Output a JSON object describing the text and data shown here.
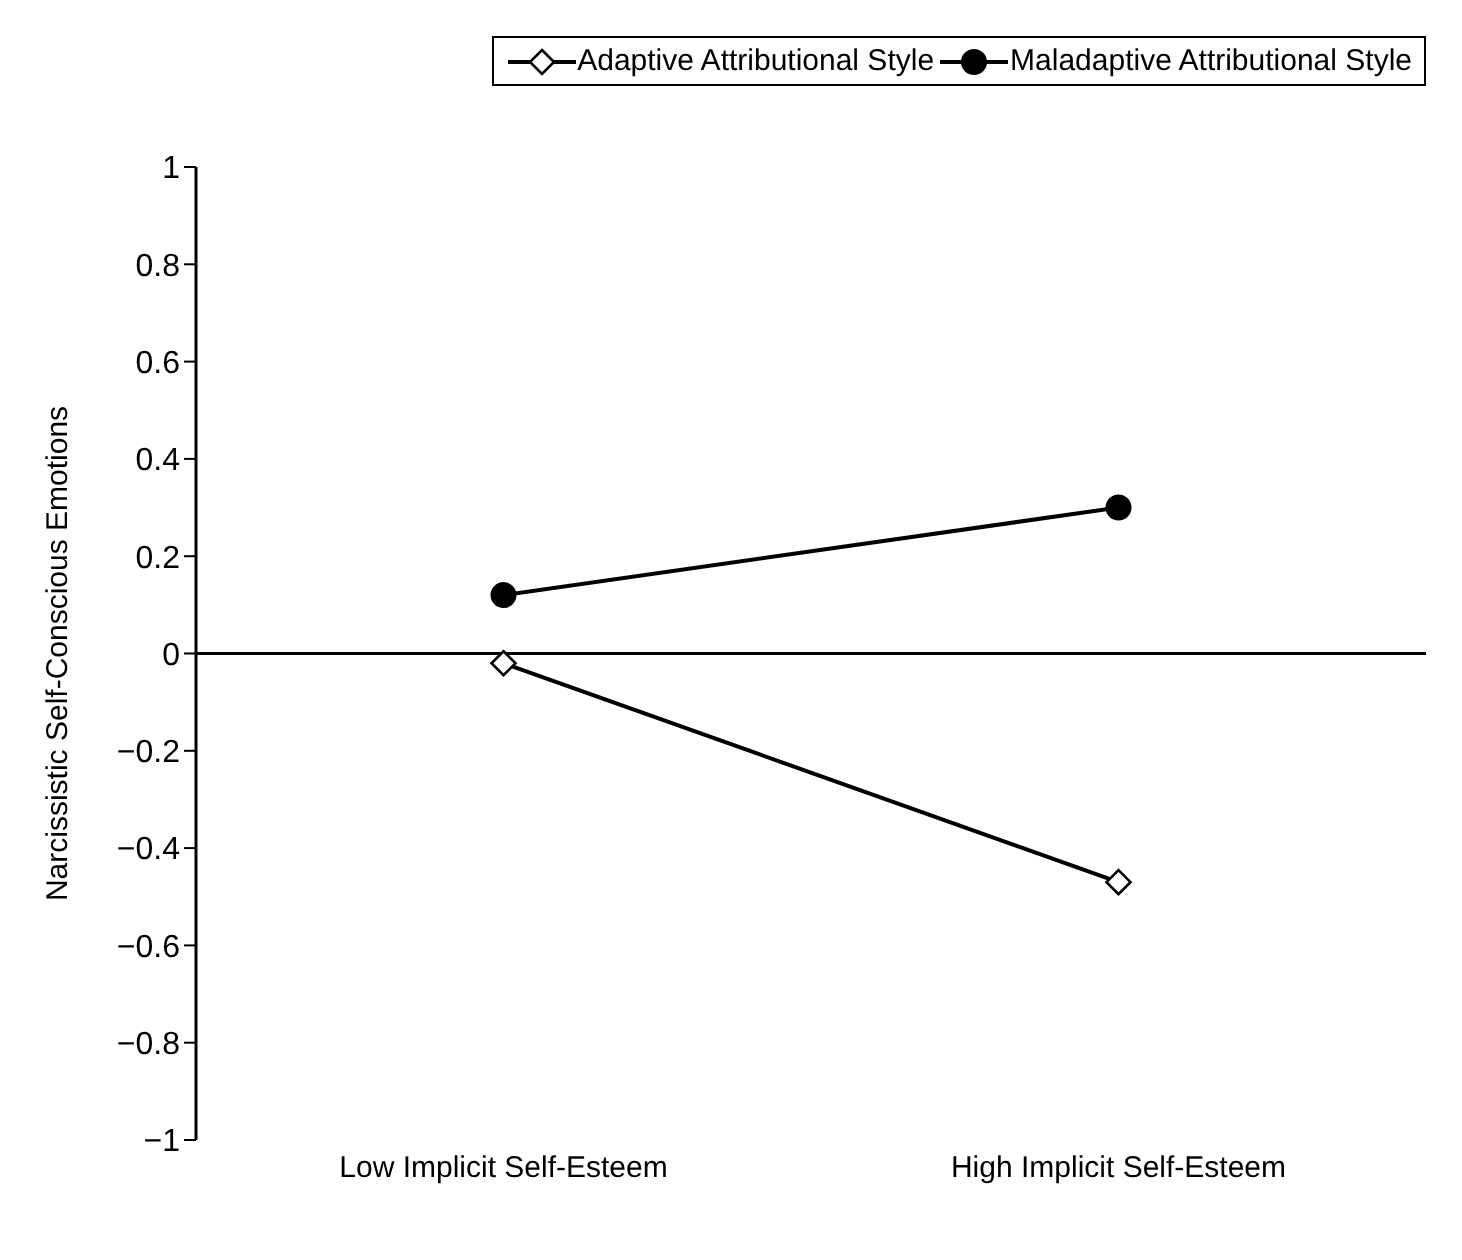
{
  "chart_data": {
    "type": "line",
    "ylabel": "Narcissistic Self-Conscious Emotions",
    "categories": [
      "Low Implicit Self-Esteem",
      "High Implicit Self-Esteem"
    ],
    "series": [
      {
        "name": "Adaptive Attributional Style",
        "color": "#000000",
        "marker": "diamond",
        "values": [
          -0.02,
          -0.47
        ]
      },
      {
        "name": "Maladaptive Attributional Style",
        "color": "#000000",
        "marker": "circle",
        "values": [
          0.12,
          0.3
        ]
      }
    ],
    "ref_lines": [
      {
        "axis": "y",
        "value": 0,
        "color": "#000000"
      }
    ],
    "ylim": [
      -1,
      1
    ],
    "yticks": [
      -1,
      -0.8,
      -0.6,
      -0.4,
      -0.2,
      0,
      0.2,
      0.4,
      0.6,
      0.8,
      1
    ],
    "grid": false,
    "legend": "top right"
  }
}
